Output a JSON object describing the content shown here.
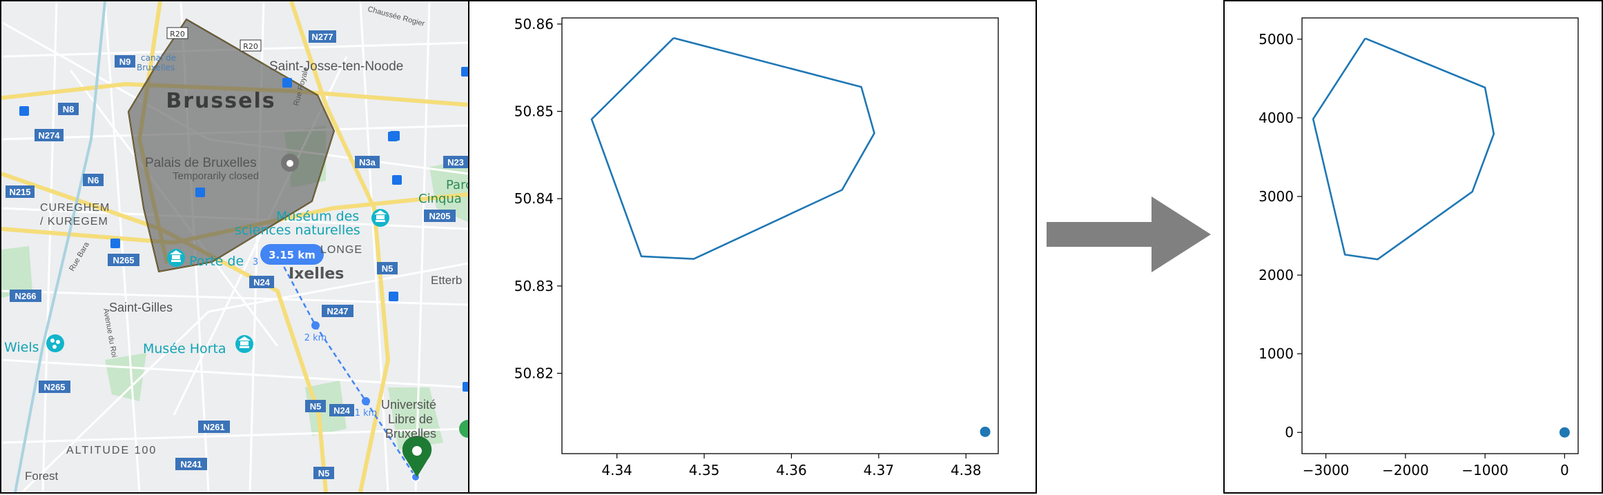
{
  "map": {
    "city_label": "Brussels",
    "district_labels": [
      {
        "key": "saint-josse",
        "text": "Saint-Josse-ten-Noode"
      },
      {
        "key": "palais",
        "text": "Palais de Bruxelles"
      },
      {
        "key": "temp-closed",
        "text": "Temporarily closed"
      },
      {
        "key": "cureghem",
        "text": "CUREGHEM"
      },
      {
        "key": "kuregem",
        "text": "/ KUREGEM"
      },
      {
        "key": "museum1",
        "text": "Muséum des"
      },
      {
        "key": "museum2",
        "text": "sciences naturelles"
      },
      {
        "key": "porte",
        "text": "Porte de"
      },
      {
        "key": "ixelles",
        "text": "Ixelles"
      },
      {
        "key": "saint-gilles",
        "text": "Saint-Gilles"
      },
      {
        "key": "wiels",
        "text": "Wiels"
      },
      {
        "key": "horta",
        "text": "Musée Horta"
      },
      {
        "key": "univ1",
        "text": "Université"
      },
      {
        "key": "univ2",
        "text": "Libre de"
      },
      {
        "key": "univ3",
        "text": "Bruxelles"
      },
      {
        "key": "altitude",
        "text": "ALTITUDE 100"
      },
      {
        "key": "forest",
        "text": "Forest"
      },
      {
        "key": "etterb",
        "text": "Etterb"
      },
      {
        "key": "parc",
        "text": "Parc"
      },
      {
        "key": "cinqu",
        "text": "Cinqua"
      },
      {
        "key": "longe",
        "text": "LONGE"
      },
      {
        "key": "canal",
        "text": "canal de"
      },
      {
        "key": "bruxelles-canal",
        "text": "Bruxelles"
      },
      {
        "key": "rue-bara",
        "text": "Rue Bara"
      },
      {
        "key": "rue-royale",
        "text": "Rue Royale"
      },
      {
        "key": "av-roi",
        "text": "Avenue du Roi"
      },
      {
        "key": "chaussee",
        "text": "Chaussée Rogier"
      }
    ],
    "road_shields": [
      {
        "key": "n277",
        "text": "N277"
      },
      {
        "key": "n9",
        "text": "N9"
      },
      {
        "key": "n8",
        "text": "N8"
      },
      {
        "key": "n274",
        "text": "N274"
      },
      {
        "key": "n6",
        "text": "N6"
      },
      {
        "key": "n215",
        "text": "N215"
      },
      {
        "key": "n3a",
        "text": "N3a"
      },
      {
        "key": "n23",
        "text": "N23"
      },
      {
        "key": "n205",
        "text": "N205"
      },
      {
        "key": "n265a",
        "text": "N265"
      },
      {
        "key": "n24a",
        "text": "N24"
      },
      {
        "key": "n5a",
        "text": "N5"
      },
      {
        "key": "n266",
        "text": "N266"
      },
      {
        "key": "n247",
        "text": "N247"
      },
      {
        "key": "n265b",
        "text": "N265"
      },
      {
        "key": "n5b",
        "text": "N5"
      },
      {
        "key": "n24b",
        "text": "N24"
      },
      {
        "key": "n261",
        "text": "N261"
      },
      {
        "key": "n241",
        "text": "N241"
      },
      {
        "key": "n5c",
        "text": "N5"
      }
    ],
    "ring_shields": [
      {
        "key": "r20a",
        "text": "R20"
      },
      {
        "key": "r20b",
        "text": "R20"
      }
    ],
    "distance_badge": "3.15 km",
    "distance_ticks": [
      {
        "key": "t2",
        "text": "2 km"
      },
      {
        "key": "t1",
        "text": "1 km"
      },
      {
        "key": "t3",
        "text": "3"
      }
    ]
  },
  "plot_left": {
    "chart_data": {
      "type": "line",
      "polygon_x": [
        4.3465,
        4.368,
        4.3695,
        4.3658,
        4.3488,
        4.3428,
        4.3371,
        4.3465
      ],
      "polygon_y": [
        50.8584,
        50.8528,
        50.8475,
        50.841,
        50.8331,
        50.8334,
        50.8491,
        50.8584
      ],
      "point": {
        "x": 4.3822,
        "y": 50.8133
      },
      "xlim": [
        4.3337,
        4.3837
      ],
      "ylim": [
        50.8108,
        50.8607
      ],
      "xticks": [
        4.34,
        4.35,
        4.36,
        4.37,
        4.38
      ],
      "yticks": [
        50.82,
        50.83,
        50.84,
        50.85,
        50.86
      ],
      "xtick_labels": [
        "4.34",
        "4.35",
        "4.36",
        "4.37",
        "4.38"
      ],
      "ytick_labels": [
        "50.82",
        "50.83",
        "50.84",
        "50.85",
        "50.86"
      ],
      "line_color": "#1f77b4",
      "point_color": "#1f77b4"
    }
  },
  "plot_right": {
    "chart_data": {
      "type": "line",
      "polygon_x": [
        -2505,
        -1000,
        -890,
        -1160,
        -2350,
        -2760,
        -3160,
        -2505
      ],
      "polygon_y": [
        5010,
        4385,
        3795,
        3060,
        2200,
        2260,
        3985,
        5010
      ],
      "point": {
        "x": 0,
        "y": 0
      },
      "xlim": [
        -3300,
        170
      ],
      "ylim": [
        -270,
        5270
      ],
      "xticks": [
        -3000,
        -2000,
        -1000,
        0
      ],
      "yticks": [
        0,
        1000,
        2000,
        3000,
        4000,
        5000
      ],
      "xtick_labels": [
        "−3000",
        "−2000",
        "−1000",
        "0"
      ],
      "ytick_labels": [
        "0",
        "1000",
        "2000",
        "3000",
        "4000",
        "5000"
      ],
      "line_color": "#1f77b4",
      "point_color": "#1f77b4"
    }
  },
  "arrow_color": "#808080"
}
